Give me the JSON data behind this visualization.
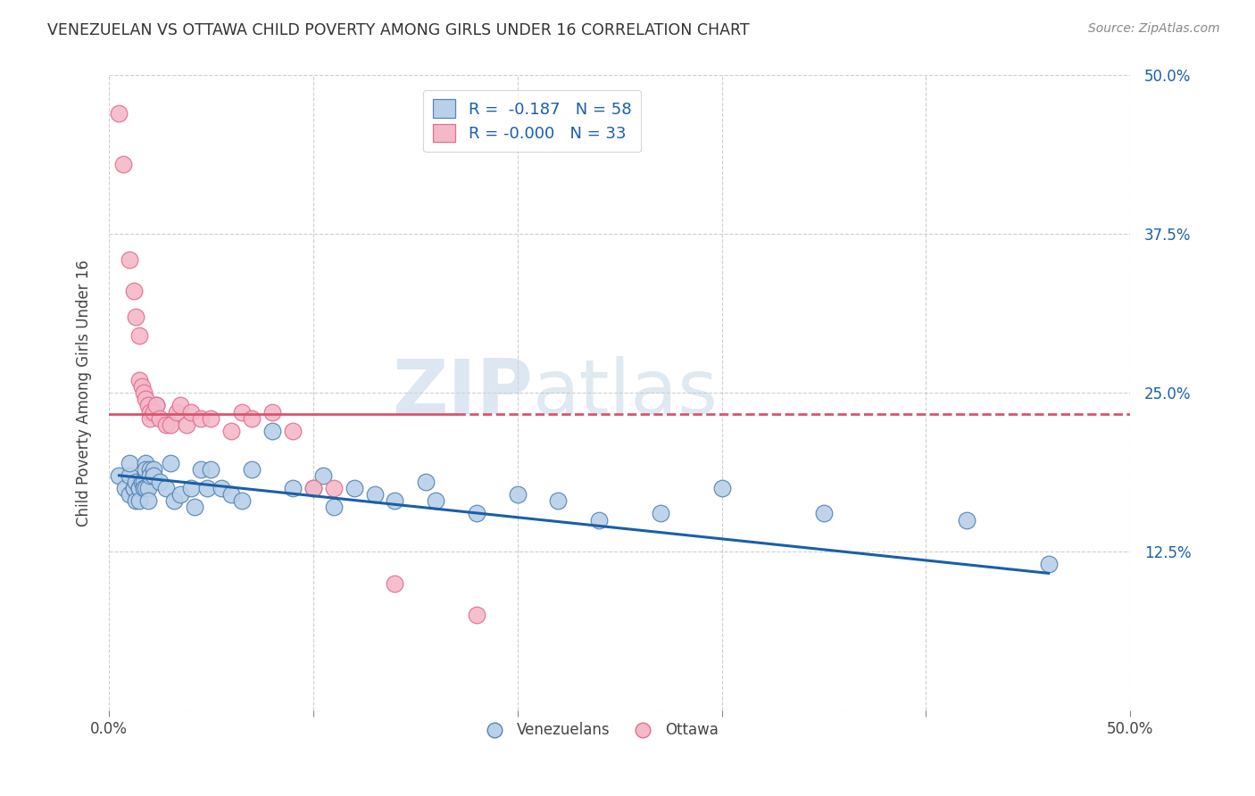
{
  "title": "VENEZUELAN VS OTTAWA CHILD POVERTY AMONG GIRLS UNDER 16 CORRELATION CHART",
  "source": "Source: ZipAtlas.com",
  "ylabel": "Child Poverty Among Girls Under 16",
  "xlim": [
    0,
    0.5
  ],
  "ylim": [
    0,
    0.5
  ],
  "xticks": [
    0.0,
    0.1,
    0.2,
    0.3,
    0.4,
    0.5
  ],
  "yticks": [
    0.0,
    0.125,
    0.25,
    0.375,
    0.5
  ],
  "xticklabels": [
    "0.0%",
    "",
    "",
    "",
    "",
    "50.0%"
  ],
  "yticklabels_right": [
    "",
    "12.5%",
    "25.0%",
    "37.5%",
    "50.0%"
  ],
  "legend_blue_r": "R =  -0.187",
  "legend_blue_n": "N = 58",
  "legend_pink_r": "R = -0.000",
  "legend_pink_n": "N = 33",
  "blue_fill": "#b8d0e8",
  "pink_fill": "#f5b8c8",
  "blue_edge": "#5585b5",
  "pink_edge": "#e07090",
  "blue_line_color": "#1a5fa8",
  "pink_line_color": "#e05070",
  "watermark_zip": "ZIP",
  "watermark_atlas": "atlas",
  "venezuelans_x": [
    0.005,
    0.008,
    0.01,
    0.01,
    0.01,
    0.012,
    0.012,
    0.013,
    0.013,
    0.015,
    0.015,
    0.015,
    0.016,
    0.017,
    0.017,
    0.018,
    0.018,
    0.018,
    0.019,
    0.019,
    0.02,
    0.02,
    0.022,
    0.022,
    0.023,
    0.025,
    0.028,
    0.03,
    0.032,
    0.035,
    0.04,
    0.042,
    0.045,
    0.048,
    0.05,
    0.055,
    0.06,
    0.065,
    0.07,
    0.08,
    0.09,
    0.1,
    0.105,
    0.11,
    0.12,
    0.13,
    0.14,
    0.155,
    0.16,
    0.18,
    0.2,
    0.22,
    0.24,
    0.27,
    0.3,
    0.35,
    0.42,
    0.46
  ],
  "venezuelans_y": [
    0.185,
    0.175,
    0.185,
    0.17,
    0.195,
    0.175,
    0.175,
    0.165,
    0.18,
    0.175,
    0.175,
    0.165,
    0.18,
    0.18,
    0.175,
    0.175,
    0.195,
    0.19,
    0.175,
    0.165,
    0.19,
    0.185,
    0.19,
    0.185,
    0.24,
    0.18,
    0.175,
    0.195,
    0.165,
    0.17,
    0.175,
    0.16,
    0.19,
    0.175,
    0.19,
    0.175,
    0.17,
    0.165,
    0.19,
    0.22,
    0.175,
    0.175,
    0.185,
    0.16,
    0.175,
    0.17,
    0.165,
    0.18,
    0.165,
    0.155,
    0.17,
    0.165,
    0.15,
    0.155,
    0.175,
    0.155,
    0.15,
    0.115
  ],
  "ottawa_x": [
    0.005,
    0.007,
    0.01,
    0.012,
    0.013,
    0.015,
    0.015,
    0.016,
    0.017,
    0.018,
    0.019,
    0.02,
    0.02,
    0.022,
    0.023,
    0.025,
    0.028,
    0.03,
    0.033,
    0.035,
    0.038,
    0.04,
    0.045,
    0.05,
    0.06,
    0.065,
    0.07,
    0.08,
    0.09,
    0.1,
    0.11,
    0.14,
    0.18
  ],
  "ottawa_y": [
    0.47,
    0.43,
    0.355,
    0.33,
    0.31,
    0.295,
    0.26,
    0.255,
    0.25,
    0.245,
    0.24,
    0.235,
    0.23,
    0.235,
    0.24,
    0.23,
    0.225,
    0.225,
    0.235,
    0.24,
    0.225,
    0.235,
    0.23,
    0.23,
    0.22,
    0.235,
    0.23,
    0.235,
    0.22,
    0.175,
    0.175,
    0.1,
    0.075
  ],
  "blue_trend_x": [
    0.005,
    0.46
  ],
  "blue_trend_y": [
    0.185,
    0.108
  ],
  "pink_trend_y": 0.233
}
